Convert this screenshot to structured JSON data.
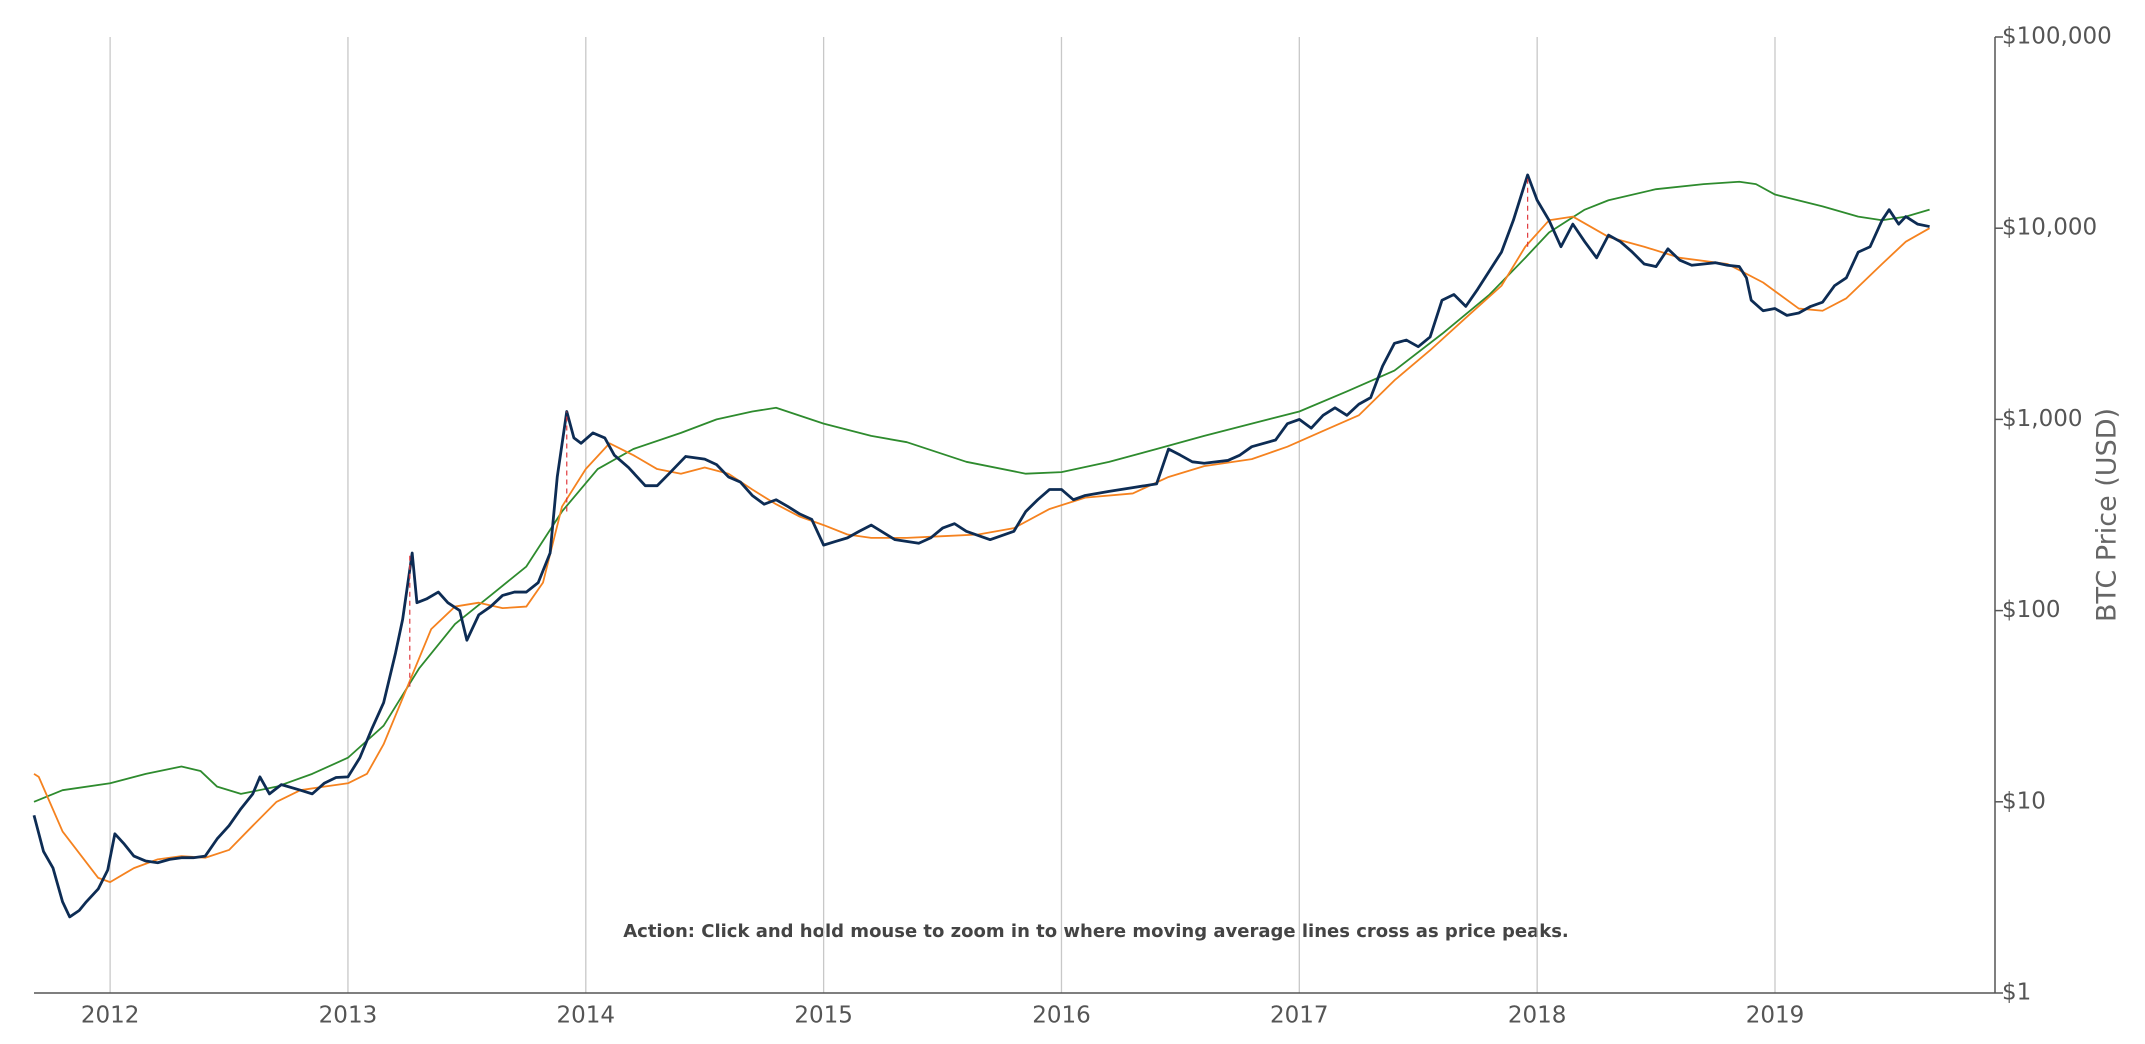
{
  "chart_data": {
    "type": "line",
    "annotation": "Action: Click and hold mouse to zoom in to where moving average lines cross as price peaks.",
    "y_label": "BTC Price (USD)",
    "log_y": true,
    "grid": "x",
    "xlim": [
      2011.68,
      2019.925
    ],
    "xticks": [
      2012,
      2013,
      2014,
      2015,
      2016,
      2017,
      2018,
      2019
    ],
    "ylim": [
      1,
      100000
    ],
    "yticks": [
      {
        "value": 1,
        "label": "$1"
      },
      {
        "value": 10,
        "label": "$10"
      },
      {
        "value": 100,
        "label": "$100"
      },
      {
        "value": 1000,
        "label": "$1,000"
      },
      {
        "value": 10000,
        "label": "$10,000"
      },
      {
        "value": 100000,
        "label": "$100,000"
      }
    ],
    "series": [
      {
        "color": "#2e8b2e",
        "width": 1.8,
        "x": [
          2011.68,
          2011.8,
          2012.0,
          2012.15,
          2012.3,
          2012.38,
          2012.45,
          2012.55,
          2012.7,
          2012.85,
          2013.0,
          2013.15,
          2013.3,
          2013.45,
          2013.6,
          2013.75,
          2013.9,
          2014.05,
          2014.2,
          2014.4,
          2014.55,
          2014.7,
          2014.8,
          2015.0,
          2015.2,
          2015.35,
          2015.6,
          2015.85,
          2016.0,
          2016.2,
          2016.4,
          2016.6,
          2016.8,
          2017.0,
          2017.2,
          2017.4,
          2017.6,
          2017.8,
          2017.95,
          2018.05,
          2018.2,
          2018.3,
          2018.5,
          2018.7,
          2018.85,
          2018.92,
          2019.0,
          2019.2,
          2019.35,
          2019.45,
          2019.55,
          2019.65
        ],
        "values": [
          10,
          11.5,
          12.5,
          14,
          15.3,
          14.5,
          12,
          11,
          12,
          14,
          17,
          25,
          50,
          85,
          120,
          170,
          330,
          550,
          700,
          850,
          1000,
          1100,
          1150,
          950,
          820,
          760,
          600,
          520,
          530,
          600,
          700,
          820,
          950,
          1100,
          1400,
          1800,
          2800,
          4500,
          7000,
          9500,
          12500,
          14000,
          16000,
          17000,
          17500,
          17000,
          15000,
          13000,
          11500,
          11000,
          11500,
          12500
        ]
      },
      {
        "color": "#f5821f",
        "width": 1.8,
        "x": [
          2011.68,
          2011.7,
          2011.8,
          2011.95,
          2012.0,
          2012.1,
          2012.2,
          2012.3,
          2012.4,
          2012.5,
          2012.6,
          2012.7,
          2012.8,
          2012.9,
          2013.0,
          2013.08,
          2013.15,
          2013.25,
          2013.35,
          2013.45,
          2013.55,
          2013.65,
          2013.75,
          2013.82,
          2013.9,
          2014.0,
          2014.1,
          2014.2,
          2014.3,
          2014.4,
          2014.5,
          2014.6,
          2014.7,
          2014.8,
          2014.9,
          2015.0,
          2015.1,
          2015.2,
          2015.35,
          2015.5,
          2015.65,
          2015.8,
          2015.95,
          2016.1,
          2016.3,
          2016.45,
          2016.6,
          2016.8,
          2016.95,
          2017.1,
          2017.25,
          2017.4,
          2017.55,
          2017.7,
          2017.85,
          2017.95,
          2018.05,
          2018.15,
          2018.3,
          2018.45,
          2018.6,
          2018.8,
          2018.95,
          2019.1,
          2019.2,
          2019.3,
          2019.45,
          2019.55,
          2019.65
        ],
        "values": [
          14,
          13.5,
          7,
          4,
          3.8,
          4.5,
          5.0,
          5.2,
          5.1,
          5.6,
          7.5,
          10,
          11.5,
          12,
          12.5,
          14,
          20,
          40,
          80,
          105,
          110,
          103,
          105,
          140,
          350,
          550,
          750,
          650,
          550,
          520,
          560,
          520,
          430,
          360,
          310,
          280,
          250,
          240,
          240,
          245,
          250,
          270,
          340,
          390,
          410,
          500,
          570,
          620,
          720,
          870,
          1050,
          1600,
          2300,
          3400,
          5000,
          8000,
          11000,
          11500,
          9000,
          8000,
          7000,
          6500,
          5200,
          3800,
          3700,
          4300,
          6500,
          8500,
          10000
        ]
      },
      {
        "color": "#0d2c54",
        "width": 2.8,
        "x": [
          2011.68,
          2011.72,
          2011.76,
          2011.8,
          2011.83,
          2011.87,
          2011.9,
          2011.95,
          2011.99,
          2012.02,
          2012.06,
          2012.1,
          2012.15,
          2012.2,
          2012.25,
          2012.3,
          2012.35,
          2012.4,
          2012.45,
          2012.5,
          2012.55,
          2012.6,
          2012.63,
          2012.67,
          2012.72,
          2012.8,
          2012.85,
          2012.9,
          2012.95,
          2013.0,
          2013.05,
          2013.1,
          2013.15,
          2013.2,
          2013.23,
          2013.27,
          2013.29,
          2013.33,
          2013.38,
          2013.42,
          2013.47,
          2013.5,
          2013.55,
          2013.6,
          2013.65,
          2013.7,
          2013.75,
          2013.8,
          2013.85,
          2013.88,
          2013.92,
          2013.95,
          2013.98,
          2014.03,
          2014.08,
          2014.12,
          2014.18,
          2014.25,
          2014.3,
          2014.35,
          2014.42,
          2014.5,
          2014.55,
          2014.6,
          2014.65,
          2014.7,
          2014.75,
          2014.8,
          2014.85,
          2014.9,
          2014.95,
          2015.0,
          2015.05,
          2015.1,
          2015.15,
          2015.2,
          2015.3,
          2015.4,
          2015.45,
          2015.5,
          2015.55,
          2015.6,
          2015.7,
          2015.8,
          2015.85,
          2015.9,
          2015.95,
          2016.0,
          2016.05,
          2016.1,
          2016.2,
          2016.3,
          2016.4,
          2016.45,
          2016.5,
          2016.55,
          2016.6,
          2016.7,
          2016.75,
          2016.8,
          2016.9,
          2016.95,
          2017.0,
          2017.05,
          2017.1,
          2017.15,
          2017.2,
          2017.25,
          2017.3,
          2017.35,
          2017.4,
          2017.45,
          2017.5,
          2017.55,
          2017.6,
          2017.65,
          2017.7,
          2017.75,
          2017.8,
          2017.85,
          2017.9,
          2017.96,
          2018.0,
          2018.05,
          2018.1,
          2018.15,
          2018.2,
          2018.25,
          2018.3,
          2018.35,
          2018.4,
          2018.45,
          2018.5,
          2018.55,
          2018.6,
          2018.65,
          2018.7,
          2018.75,
          2018.8,
          2018.85,
          2018.88,
          2018.9,
          2018.95,
          2019.0,
          2019.05,
          2019.1,
          2019.15,
          2019.2,
          2019.25,
          2019.3,
          2019.35,
          2019.4,
          2019.45,
          2019.48,
          2019.52,
          2019.55,
          2019.6,
          2019.65
        ],
        "values": [
          8.5,
          5.5,
          4.5,
          3.0,
          2.5,
          2.7,
          3.0,
          3.5,
          4.4,
          6.8,
          6.0,
          5.2,
          4.9,
          4.8,
          5.0,
          5.1,
          5.1,
          5.2,
          6.4,
          7.5,
          9.2,
          11.0,
          13.5,
          11.0,
          12.3,
          11.5,
          11.0,
          12.5,
          13.4,
          13.5,
          17,
          24,
          33,
          60,
          90,
          200,
          110,
          115,
          125,
          110,
          100,
          70,
          95,
          105,
          120,
          125,
          125,
          140,
          200,
          500,
          1100,
          800,
          750,
          850,
          800,
          650,
          560,
          450,
          450,
          520,
          640,
          620,
          580,
          500,
          470,
          400,
          360,
          380,
          350,
          320,
          300,
          220,
          230,
          240,
          260,
          280,
          235,
          225,
          240,
          270,
          285,
          260,
          235,
          260,
          330,
          380,
          430,
          430,
          380,
          400,
          420,
          440,
          460,
          700,
          650,
          600,
          590,
          610,
          650,
          720,
          780,
          950,
          1000,
          900,
          1050,
          1150,
          1050,
          1200,
          1300,
          1900,
          2500,
          2600,
          2400,
          2700,
          4200,
          4500,
          3900,
          4800,
          6000,
          7500,
          11000,
          19000,
          14000,
          11000,
          8000,
          10500,
          8500,
          7000,
          9200,
          8500,
          7500,
          6500,
          6300,
          7800,
          6800,
          6400,
          6500,
          6600,
          6400,
          6300,
          5500,
          4200,
          3700,
          3800,
          3500,
          3600,
          3900,
          4100,
          5000,
          5500,
          7500,
          8000,
          11000,
          12500,
          10500,
          11500,
          10500,
          10200
        ]
      },
      {
        "color": "#e0393e",
        "width": 1.2,
        "dash": true,
        "x": [
          2013.26,
          2013.26
        ],
        "values": [
          40,
          200
        ]
      },
      {
        "color": "#e0393e",
        "width": 1.2,
        "dash": true,
        "x": [
          2013.92,
          2013.92
        ],
        "values": [
          330,
          1100
        ]
      },
      {
        "color": "#e0393e",
        "width": 1.2,
        "dash": true,
        "x": [
          2017.96,
          2017.96
        ],
        "values": [
          8000,
          19000
        ]
      }
    ]
  }
}
